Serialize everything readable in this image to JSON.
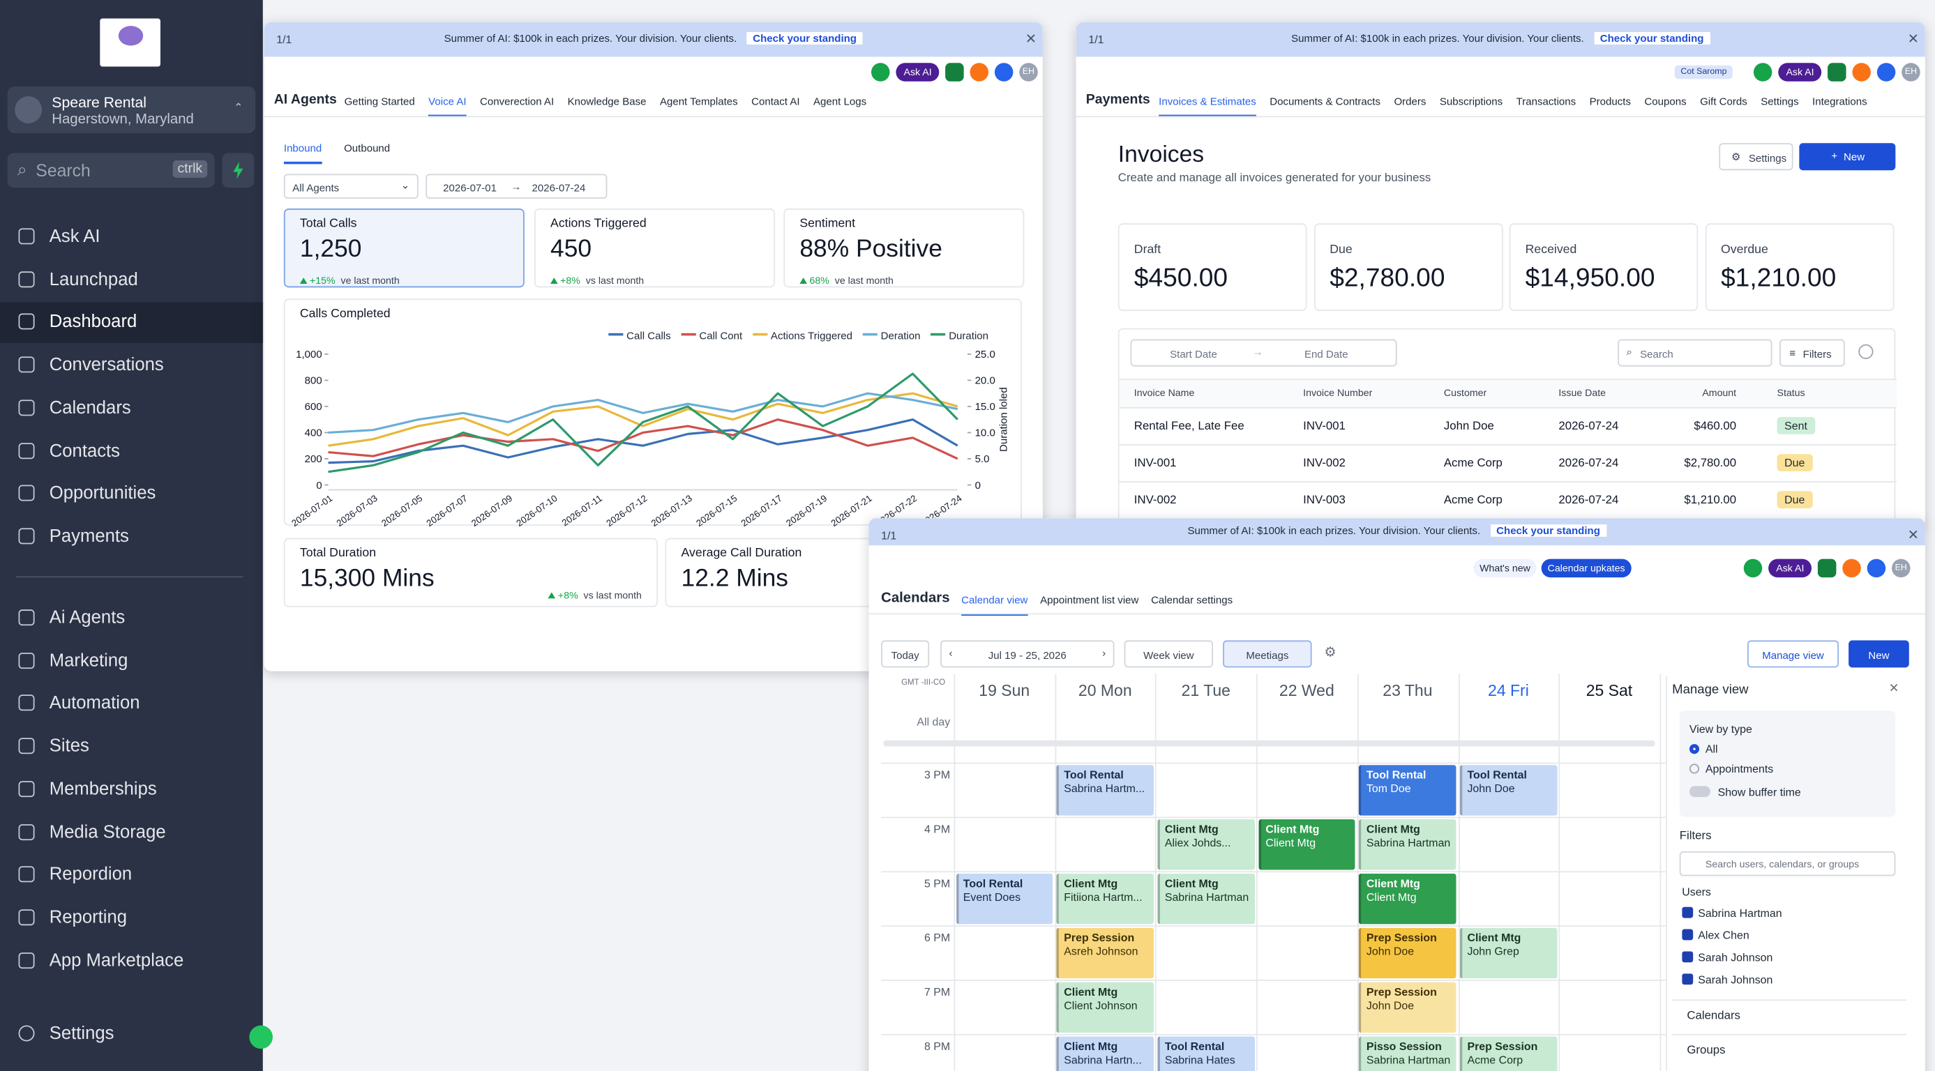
{
  "sidebar": {
    "account": {
      "name": "Speare Rental",
      "location": "Hagerstown, Maryland"
    },
    "search": {
      "placeholder": "Search",
      "shortcut": "ctrlk"
    },
    "nav": [
      "Ask AI",
      "Launchpad",
      "Dashboard",
      "Conversations",
      "Calendars",
      "Contacts",
      "Opportunities",
      "Payments"
    ],
    "nav_active": 2,
    "nav2": [
      "Ai Agents",
      "Marketing",
      "Automation",
      "Sites",
      "Memberships",
      "Media Storage",
      "Repordion",
      "Reporting",
      "App Marketplace"
    ],
    "settings": "Settings"
  },
  "common": {
    "banner": {
      "page": "1/1",
      "text": "Summer of AI: $100k in each prizes. Your division. Your clients.",
      "button": "Check your standing"
    },
    "ask_ai": "Ask AI",
    "avatar": "EH"
  },
  "agents": {
    "title": "AI Agents",
    "tabs": [
      "Getting Started",
      "Voice AI",
      "Converection AI",
      "Knowledge Base",
      "Agent Templates",
      "Contact AI",
      "Agent Logs"
    ],
    "tab_active": 1,
    "subtabs": [
      "Inbound",
      "Outbound"
    ],
    "subtab_active": 0,
    "filters": {
      "agent": "All Agents",
      "start": "2026-07-01",
      "end": "2026-07-24"
    },
    "stats": [
      {
        "label": "Total Calls",
        "value": "1,250",
        "change": "+15%",
        "note": "ve last month"
      },
      {
        "label": "Actions Triggered",
        "value": "450",
        "change": "+8%",
        "note": "vs last month"
      },
      {
        "label": "Sentiment",
        "value": "88% Positive",
        "change": "68%",
        "note": "ve last month"
      }
    ],
    "chart": {
      "type": "line",
      "title": "Calls Completed",
      "categories": [
        "2026-07-01",
        "2026-07-03",
        "2026-07-05",
        "2026-07-07",
        "2026-07-09",
        "2026-07-10",
        "2026-07-11",
        "2026-07-12",
        "2026-07-13",
        "2026-07-15",
        "2026-07-17",
        "2026-07-19",
        "2026-07-21",
        "2026-07-22",
        "2026-07-24"
      ],
      "series": [
        {
          "name": "Call Calls",
          "color": "#3b6fb6",
          "values": [
            170,
            180,
            260,
            300,
            210,
            290,
            350,
            300,
            390,
            420,
            310,
            360,
            420,
            500,
            300
          ]
        },
        {
          "name": "Call Cont",
          "color": "#d0504c",
          "values": [
            250,
            220,
            310,
            380,
            330,
            350,
            260,
            400,
            450,
            380,
            500,
            420,
            300,
            360,
            200
          ]
        },
        {
          "name": "Actions Triggered",
          "color": "#e8b83a",
          "values": [
            300,
            350,
            450,
            510,
            380,
            560,
            600,
            450,
            580,
            500,
            620,
            550,
            650,
            700,
            600
          ]
        },
        {
          "name": "Deration",
          "color": "#6aaed6",
          "values": [
            400,
            420,
            500,
            550,
            480,
            600,
            650,
            550,
            620,
            560,
            650,
            600,
            700,
            650,
            580
          ]
        },
        {
          "name": "Duration",
          "color": "#2e9a6a",
          "values": [
            100,
            150,
            250,
            400,
            300,
            500,
            150,
            480,
            600,
            350,
            700,
            450,
            600,
            850,
            500
          ]
        }
      ],
      "ylim": [
        0,
        1000
      ],
      "yticks": [
        0,
        200,
        400,
        600,
        800,
        {
          "value": 1000,
          "label": "1,000"
        }
      ],
      "y2lim": [
        0,
        25
      ],
      "y2ticks": [
        0,
        {
          "value": 5,
          "label": "5.0"
        },
        {
          "value": 10,
          "label": "10.0"
        },
        {
          "value": 15,
          "label": "15.0"
        },
        {
          "value": 20,
          "label": "20.0"
        },
        {
          "value": 25,
          "label": "25.0"
        }
      ],
      "y2_label": "Duration loled"
    },
    "bottom_stats": [
      {
        "label": "Total Duration",
        "value": "15,300 Mins",
        "change": "+8%",
        "note": "vs last month"
      },
      {
        "label": "Average Call Duration",
        "value": "12.2 Mins"
      }
    ]
  },
  "payments": {
    "title": "Payments",
    "chip": "Cot Saromp",
    "tabs": [
      "Invoices & Estimates",
      "Documents & Contracts",
      "Orders",
      "Subscriptions",
      "Transactions",
      "Products",
      "Coupons",
      "Gift Cords",
      "Settings",
      "Integrations"
    ],
    "tab_active": 0,
    "heading": "Invoices",
    "subheading": "Create and manage all invoices generated for your business",
    "buttons": {
      "settings": "Settings",
      "new": "New"
    },
    "cards": [
      {
        "label": "Draft",
        "value": "$450.00"
      },
      {
        "label": "Due",
        "value": "$2,780.00"
      },
      {
        "label": "Received",
        "value": "$14,950.00"
      },
      {
        "label": "Overdue",
        "value": "$1,210.00"
      }
    ],
    "filters": {
      "start": "Start Date",
      "end": "End Date",
      "search": "Search",
      "filters": "Filters"
    },
    "table": {
      "columns": [
        "Invoice Name",
        "Invoice Number",
        "Customer",
        "Issue Date",
        "Amount",
        "Status"
      ],
      "rows": [
        [
          "Rental Fee, Late Fee",
          "INV-001",
          "John Doe",
          "2026-07-24",
          "$460.00",
          {
            "label": "Sent",
            "color": "#cdeed8"
          }
        ],
        [
          "INV-001",
          "INV-002",
          "Acme Corp",
          "2026-07-24",
          "$2,780.00",
          {
            "label": "Due",
            "color": "#fbe29a"
          }
        ],
        [
          "INV-002",
          "INV-003",
          "Acme Corp",
          "2026-07-24",
          "$1,210.00",
          {
            "label": "Due",
            "color": "#fbe29a"
          }
        ]
      ]
    }
  },
  "calendar": {
    "title": "Calendars",
    "tabs": [
      "Calendar view",
      "Appointment list view",
      "Calendar settings"
    ],
    "tab_active": 0,
    "chips": {
      "whats_new": "What's new",
      "updates": "Calendar upkates"
    },
    "toolbar": {
      "today": "Today",
      "range": "Jul 19 - 25, 2026",
      "view": "Week view",
      "filter": "Meetiags",
      "manage": "Manage view",
      "new": "New"
    },
    "timezone": "GMT -III-CO",
    "all_day": "All day",
    "days": [
      "19 Sun",
      "20 Mon",
      "21 Tue",
      "22 Wed",
      "23 Thu",
      "24 Fri",
      "25 Sat"
    ],
    "today_index": 5,
    "rows": [
      {
        "hour": "3 PM",
        "cells": [
          null,
          {
            "title": "Tool Rental",
            "subtitle": "Sabrina Hartm...",
            "color": "#c5d8f5",
            "text_color": "#1b2b45"
          },
          null,
          null,
          {
            "title": "Tool Rental",
            "subtitle": "Tom Doe",
            "color": "#3d7ae0",
            "text_color": "#ffffff"
          },
          {
            "title": "Tool Rental",
            "subtitle": "John Doe",
            "color": "#c5d8f5",
            "text_color": "#1b2b45"
          },
          null
        ]
      },
      {
        "hour": "4 PM",
        "cells": [
          null,
          null,
          {
            "title": "Client Mtg",
            "subtitle": "Aliex Johds...",
            "color": "#c8ead3",
            "text_color": "#1b3325"
          },
          {
            "title": "Client Mtg",
            "subtitle": "Client Mtg",
            "color": "#2f9e4f",
            "text_color": "#ffffff"
          },
          {
            "title": "Client Mtg",
            "subtitle": "Sabrina Hartman",
            "color": "#c8ead3",
            "text_color": "#1b3325"
          },
          null,
          null
        ]
      },
      {
        "hour": "5 PM",
        "cells": [
          {
            "title": "Tool Rental",
            "subtitle": "Event Does",
            "color": "#c5d8f5",
            "text_color": "#1b2b45"
          },
          {
            "title": "Client Mtg",
            "subtitle": "Fitiiona Hartm...",
            "color": "#c8ead3",
            "text_color": "#1b3325"
          },
          {
            "title": "Client Mtg",
            "subtitle": "Sabrina Hartman",
            "color": "#c8ead3",
            "text_color": "#1b3325"
          },
          null,
          {
            "title": "Client Mtg",
            "subtitle": "Client Mtg",
            "color": "#2f9e4f",
            "text_color": "#ffffff"
          },
          null,
          null
        ]
      },
      {
        "hour": "6 PM",
        "cells": [
          null,
          {
            "title": "Prep Session",
            "subtitle": "Asreh Johnson",
            "color": "#f8d77e",
            "text_color": "#3d2e05"
          },
          null,
          null,
          {
            "title": "Prep Session",
            "subtitle": "John Doe",
            "color": "#f5c542",
            "text_color": "#3d2e05"
          },
          {
            "title": "Client Mtg",
            "subtitle": "John Grep",
            "color": "#c8ead3",
            "text_color": "#1b3325"
          },
          null
        ]
      },
      {
        "hour": "7 PM",
        "cells": [
          null,
          {
            "title": "Client Mtg",
            "subtitle": "Client Johnson",
            "color": "#c8ead3",
            "text_color": "#1b3325"
          },
          null,
          null,
          {
            "title": "Prep Session",
            "subtitle": "John Doe",
            "color": "#f8e3a3",
            "text_color": "#3d2e05"
          },
          null,
          null
        ]
      },
      {
        "hour": "8 PM",
        "cells": [
          null,
          {
            "title": "Client Mtg",
            "subtitle": "Sabrina Hartn...",
            "color": "#c5d8f5",
            "text_color": "#1b2b45"
          },
          {
            "title": "Tool Rental",
            "subtitle": "Sabrina Hates",
            "color": "#c5d8f5",
            "text_color": "#1b2b45"
          },
          null,
          {
            "title": "Pisso Session",
            "subtitle": "Sabrina Hartman",
            "color": "#c8ead3",
            "text_color": "#1b3325"
          },
          {
            "title": "Prep Session",
            "subtitle": "Acme Corp",
            "color": "#c8ead3",
            "text_color": "#1b3325"
          },
          null
        ]
      }
    ],
    "manage": {
      "title": "Manage view",
      "view_by": "View by type",
      "options": [
        "All",
        "Appointments"
      ],
      "option_active": 0,
      "buffer": "Show buffer time",
      "filters": "Filters",
      "search": "Search users, calendars, or groups",
      "users_label": "Users",
      "users": [
        "Sabrina Hartman",
        "Alex Chen",
        "Sarah Johnson",
        "Sarah Johnson"
      ],
      "calendars": "Calendars",
      "groups": "Groups"
    }
  }
}
